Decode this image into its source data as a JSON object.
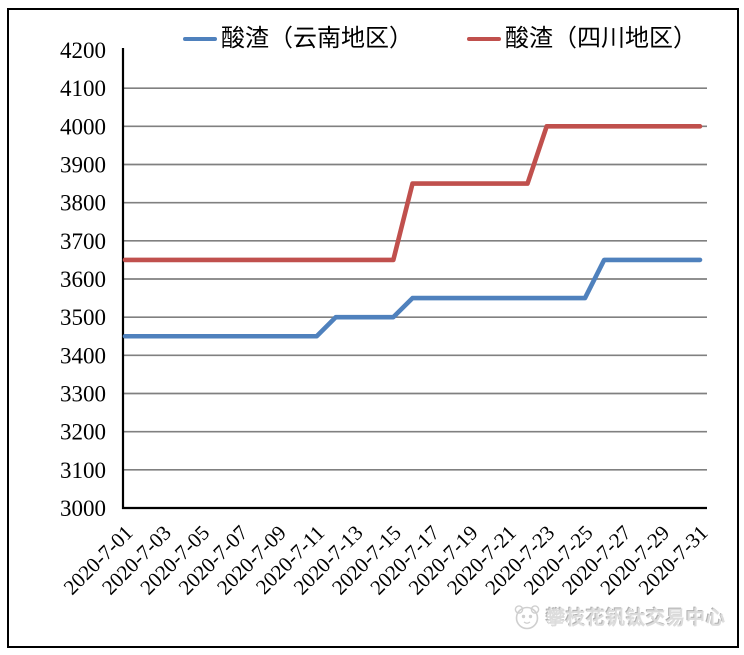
{
  "legend": {
    "items": [
      {
        "label": "酸渣（云南地区）",
        "color": "#4F81BD"
      },
      {
        "label": "酸渣（四川地区）",
        "color": "#C0504D"
      }
    ]
  },
  "watermark": {
    "text": "攀枝花钒钛交易中心",
    "icon": "panda-logo-icon"
  },
  "chart_data": {
    "type": "line",
    "title": "",
    "xlabel": "",
    "ylabel": "",
    "ylim": [
      3000,
      4200
    ],
    "yticks": [
      3000,
      3100,
      3200,
      3300,
      3400,
      3500,
      3600,
      3700,
      3800,
      3900,
      4000,
      4100,
      4200
    ],
    "x_label_every": 2,
    "grid": "horizontal",
    "legend_position": "top",
    "gridline_color": "#808080",
    "axis_color": "#000000",
    "x": [
      "2020-7-01",
      "2020-7-02",
      "2020-7-03",
      "2020-7-04",
      "2020-7-05",
      "2020-7-06",
      "2020-7-07",
      "2020-7-08",
      "2020-7-09",
      "2020-7-10",
      "2020-7-11",
      "2020-7-12",
      "2020-7-13",
      "2020-7-14",
      "2020-7-15",
      "2020-7-16",
      "2020-7-17",
      "2020-7-18",
      "2020-7-19",
      "2020-7-20",
      "2020-7-21",
      "2020-7-22",
      "2020-7-23",
      "2020-7-24",
      "2020-7-25",
      "2020-7-26",
      "2020-7-27",
      "2020-7-28",
      "2020-7-29",
      "2020-7-30",
      "2020-7-31"
    ],
    "series": [
      {
        "name": "酸渣（云南地区）",
        "color": "#4F81BD",
        "values": [
          3450,
          3450,
          3450,
          3450,
          3450,
          3450,
          3450,
          3450,
          3450,
          3450,
          3450,
          3500,
          3500,
          3500,
          3500,
          3550,
          3550,
          3550,
          3550,
          3550,
          3550,
          3550,
          3550,
          3550,
          3550,
          3650,
          3650,
          3650,
          3650,
          3650,
          3650
        ]
      },
      {
        "name": "酸渣（四川地区）",
        "color": "#C0504D",
        "values": [
          3650,
          3650,
          3650,
          3650,
          3650,
          3650,
          3650,
          3650,
          3650,
          3650,
          3650,
          3650,
          3650,
          3650,
          3650,
          3850,
          3850,
          3850,
          3850,
          3850,
          3850,
          3850,
          4000,
          4000,
          4000,
          4000,
          4000,
          4000,
          4000,
          4000,
          4000
        ]
      }
    ]
  }
}
